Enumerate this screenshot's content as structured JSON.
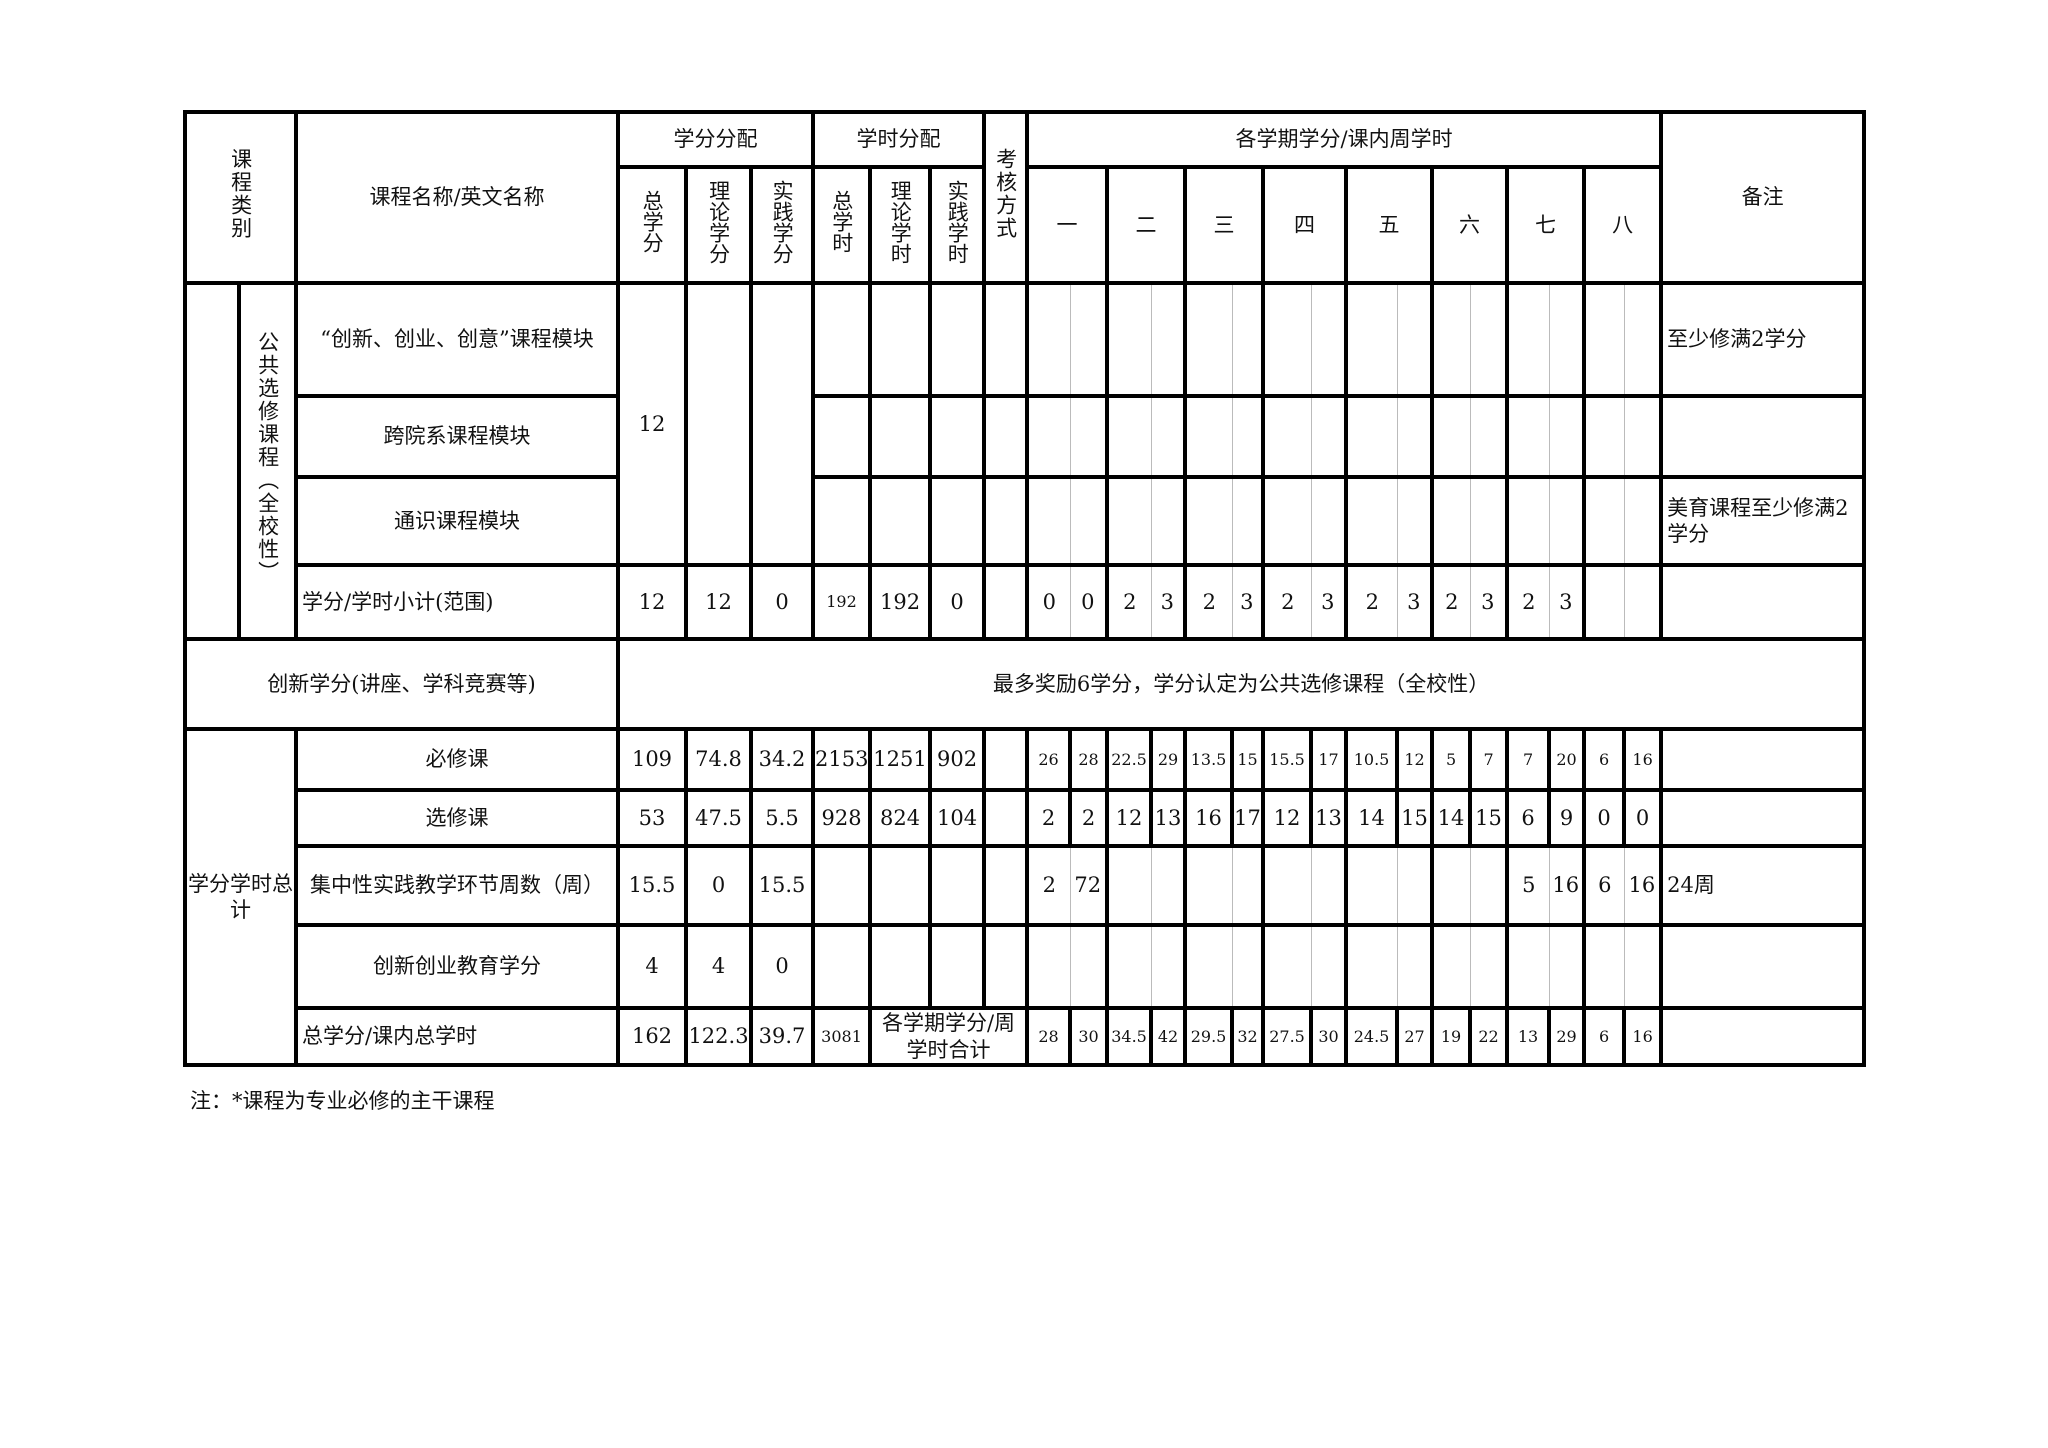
{
  "header": {
    "category": "课程类别",
    "course_name": "课程名称/英文名称",
    "credit_alloc": "学分分配",
    "hour_alloc": "学时分配",
    "assessment": "考核方式",
    "semester_group": "各学期学分/课内周学时",
    "remarks": "备注",
    "credit_cols": [
      "总学分",
      "理论学分",
      "实践学分"
    ],
    "hour_cols": [
      "总学时",
      "理论学时",
      "实践学时"
    ],
    "semesters": [
      "一",
      "二",
      "三",
      "四",
      "五",
      "六",
      "七",
      "八"
    ]
  },
  "public_elective": {
    "category": "公共选修课程（全校性）",
    "total_credits": "12",
    "modules": [
      {
        "name": "“创新、创业、创意”课程模块",
        "remark": "至少修满2学分"
      },
      {
        "name": "跨院系课程模块",
        "remark": ""
      },
      {
        "name": "通识课程模块",
        "remark": "美育课程至少修满2学分"
      }
    ],
    "subtotal": {
      "label": "学分/学时小计(范围)",
      "values": [
        "12",
        "12",
        "0",
        "192",
        "192",
        "0"
      ],
      "semester_values": [
        "0",
        "0",
        "2",
        "3",
        "2",
        "3",
        "2",
        "3",
        "2",
        "3",
        "2",
        "3",
        "2",
        "3",
        "",
        ""
      ]
    }
  },
  "innovation": {
    "label": "创新学分(讲座、学科竞赛等)",
    "text": "最多奖励6学分，学分认定为公共选修课程（全校性）"
  },
  "totals": {
    "category": "学分学时总计",
    "rows": [
      {
        "label": "必修课",
        "values": [
          "109",
          "74.8",
          "34.2",
          "2153",
          "1251",
          "902"
        ],
        "semester_values": [
          "26",
          "28",
          "22.5",
          "29",
          "13.5",
          "15",
          "15.5",
          "17",
          "10.5",
          "12",
          "5",
          "7",
          "7",
          "20",
          "6",
          "16"
        ],
        "remark": ""
      },
      {
        "label": "选修课",
        "values": [
          "53",
          "47.5",
          "5.5",
          "928",
          "824",
          "104"
        ],
        "semester_values": [
          "2",
          "2",
          "12",
          "13",
          "16",
          "17",
          "12",
          "13",
          "14",
          "15",
          "14",
          "15",
          "6",
          "9",
          "0",
          "0"
        ],
        "remark": ""
      },
      {
        "label": "集中性实践教学环节周数（周）",
        "values": [
          "15.5",
          "0",
          "15.5",
          "",
          "",
          ""
        ],
        "semester_values": [
          "2",
          "72",
          "",
          "",
          "",
          "",
          "",
          "",
          "",
          "",
          "",
          "",
          "5",
          "16",
          "6",
          "16"
        ],
        "remark": "24周"
      },
      {
        "label": "创新创业教育学分",
        "values": [
          "4",
          "4",
          "0",
          "",
          "",
          ""
        ],
        "semester_values": [
          "",
          "",
          "",
          "",
          "",
          "",
          "",
          "",
          "",
          "",
          "",
          "",
          "",
          "",
          "",
          ""
        ],
        "remark": ""
      }
    ],
    "grand_total": {
      "label": "总学分/课内总学时",
      "values": [
        "162",
        "122.3",
        "39.7",
        "3081"
      ],
      "merged_label": "各学期学分/周学时合计",
      "semester_values": [
        "28",
        "30",
        "34.5",
        "42",
        "29.5",
        "32",
        "27.5",
        "30",
        "24.5",
        "27",
        "19",
        "22",
        "13",
        "29",
        "6",
        "16"
      ],
      "remark": ""
    }
  },
  "note": "注：*课程为专业必修的主干课程"
}
